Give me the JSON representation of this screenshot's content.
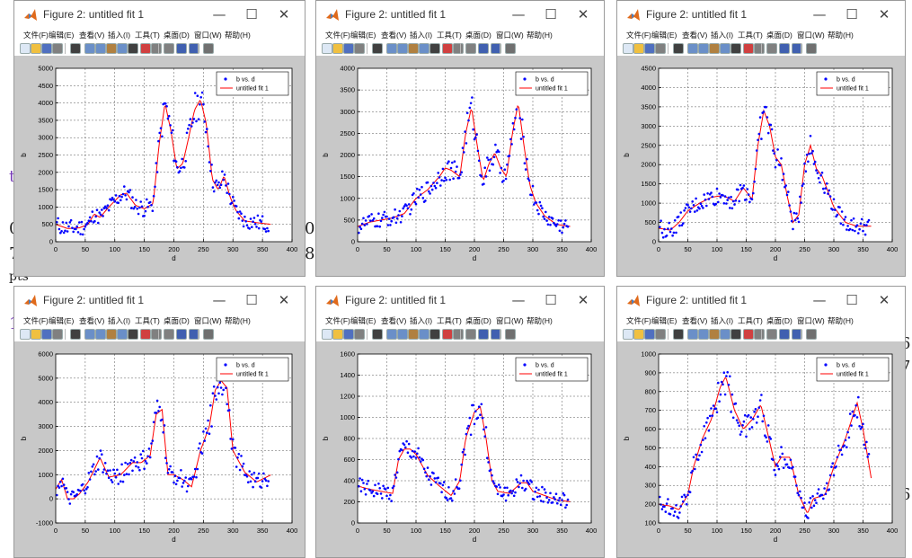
{
  "background_text": [
    "t",
    "0",
    "7",
    "0",
    "8",
    "pts",
    "1",
    "6",
    "7",
    "6"
  ],
  "window": {
    "title": "Figure 2: untitled fit 1",
    "controls": {
      "minimize": "—",
      "maximize": "☐",
      "close": "✕"
    },
    "menu": [
      "文件(F)",
      "编辑(E)",
      "查看(V)",
      "插入(I)",
      "工具(T)",
      "桌面(D)",
      "窗口(W)",
      "帮助(H)"
    ],
    "toolbar_icons": [
      "new-figure-icon",
      "open-file-icon",
      "save-icon",
      "print-icon",
      "pointer-icon",
      "zoom-in-icon",
      "zoom-out-icon",
      "pan-icon",
      "rotate-icon",
      "data-cursor-icon",
      "brush-icon",
      "link-plot-icon",
      "colorbar-icon",
      "legend-icon",
      "grid-icon",
      "plot-browser-icon"
    ]
  },
  "colors": {
    "data_points": "#0000ff",
    "fit_line": "#ff0000",
    "figure_bg": "#c8c8c8",
    "axes_bg": "#ffffff",
    "grid": "#555555"
  },
  "chart_data": [
    {
      "type": "scatter",
      "xlabel": "d",
      "ylabel": "b",
      "xlim": [
        0,
        400
      ],
      "ylim": [
        0,
        5000
      ],
      "xticks": [
        0,
        50,
        100,
        150,
        200,
        250,
        300,
        350,
        400
      ],
      "yticks": [
        0,
        500,
        1000,
        1500,
        2000,
        2500,
        3000,
        3500,
        4000,
        4500,
        5000
      ],
      "grid": true,
      "legend_position": "top-right",
      "legend": [
        "b vs. d",
        "untitled fit 1"
      ],
      "fit_x": [
        0,
        20,
        40,
        55,
        65,
        75,
        90,
        110,
        120,
        135,
        150,
        165,
        175,
        185,
        195,
        205,
        215,
        225,
        235,
        245,
        255,
        265,
        275,
        285,
        295,
        305,
        320,
        340,
        365
      ],
      "fit_y": [
        500,
        380,
        400,
        500,
        800,
        700,
        1000,
        1350,
        1400,
        1050,
        950,
        1100,
        2800,
        4000,
        3200,
        2100,
        2250,
        3000,
        3800,
        4100,
        3400,
        1800,
        1500,
        1900,
        1300,
        900,
        600,
        550,
        500
      ]
    },
    {
      "type": "scatter",
      "xlabel": "d",
      "ylabel": "b",
      "xlim": [
        0,
        400
      ],
      "ylim": [
        0,
        4000
      ],
      "xticks": [
        0,
        50,
        100,
        150,
        200,
        250,
        300,
        350,
        400
      ],
      "yticks": [
        0,
        500,
        1000,
        1500,
        2000,
        2500,
        3000,
        3500,
        4000
      ],
      "grid": true,
      "legend_position": "top-right",
      "legend": [
        "b vs. d",
        "untitled fit 1"
      ],
      "fit_x": [
        0,
        20,
        40,
        60,
        80,
        100,
        120,
        140,
        150,
        160,
        175,
        185,
        195,
        205,
        215,
        225,
        235,
        245,
        255,
        265,
        275,
        285,
        295,
        305,
        320,
        340,
        365
      ],
      "fit_y": [
        350,
        450,
        500,
        550,
        650,
        1000,
        1200,
        1500,
        1700,
        1650,
        1500,
        2500,
        3100,
        2200,
        1400,
        1800,
        2050,
        1700,
        1500,
        2500,
        3200,
        2200,
        1300,
        900,
        600,
        400,
        350
      ]
    },
    {
      "type": "scatter",
      "xlabel": "d",
      "ylabel": "b",
      "xlim": [
        0,
        400
      ],
      "ylim": [
        0,
        4500
      ],
      "xticks": [
        0,
        50,
        100,
        150,
        200,
        250,
        300,
        350,
        400
      ],
      "yticks": [
        0,
        500,
        1000,
        1500,
        2000,
        2500,
        3000,
        3500,
        4000,
        4500
      ],
      "grid": true,
      "legend_position": "top-right",
      "legend": [
        "b vs. d",
        "untitled fit 1"
      ],
      "fit_x": [
        0,
        20,
        35,
        50,
        70,
        90,
        110,
        130,
        145,
        160,
        170,
        180,
        190,
        200,
        210,
        220,
        230,
        240,
        250,
        260,
        270,
        280,
        290,
        300,
        320,
        340,
        365
      ],
      "fit_y": [
        350,
        300,
        500,
        800,
        1000,
        1150,
        1200,
        1050,
        1400,
        1100,
        2500,
        3400,
        3000,
        2200,
        2000,
        1200,
        500,
        700,
        2000,
        2500,
        1900,
        1700,
        1300,
        900,
        500,
        400,
        400
      ]
    },
    {
      "type": "scatter",
      "xlabel": "d",
      "ylabel": "b",
      "xlim": [
        0,
        400
      ],
      "ylim": [
        -1000,
        6000
      ],
      "xticks": [
        0,
        50,
        100,
        150,
        200,
        250,
        300,
        350,
        400
      ],
      "yticks": [
        -1000,
        0,
        1000,
        2000,
        3000,
        4000,
        5000,
        6000
      ],
      "grid": true,
      "legend_position": "top-right",
      "legend": [
        "b vs. d",
        "untitled fit 1"
      ],
      "fit_x": [
        0,
        10,
        20,
        30,
        40,
        55,
        65,
        75,
        90,
        110,
        130,
        145,
        160,
        170,
        180,
        190,
        200,
        215,
        230,
        245,
        260,
        270,
        280,
        290,
        300,
        320,
        340,
        365
      ],
      "fit_y": [
        400,
        800,
        0,
        0,
        200,
        700,
        1200,
        1700,
        900,
        1000,
        1500,
        1500,
        1800,
        3500,
        3700,
        1000,
        1000,
        800,
        500,
        2000,
        3000,
        4500,
        4900,
        4600,
        2000,
        1100,
        700,
        1000
      ]
    },
    {
      "type": "scatter",
      "xlabel": "d",
      "ylabel": "b",
      "xlim": [
        0,
        400
      ],
      "ylim": [
        0,
        1600
      ],
      "xticks": [
        0,
        50,
        100,
        150,
        200,
        250,
        300,
        350,
        400
      ],
      "yticks": [
        0,
        200,
        400,
        600,
        800,
        1000,
        1200,
        1400,
        1600
      ],
      "grid": true,
      "legend_position": "top-right",
      "legend": [
        "b vs. d",
        "untitled fit 1"
      ],
      "fit_x": [
        0,
        20,
        40,
        60,
        70,
        80,
        90,
        100,
        120,
        140,
        160,
        175,
        185,
        200,
        210,
        220,
        230,
        240,
        260,
        280,
        290,
        300,
        320,
        340,
        365
      ],
      "fit_y": [
        350,
        320,
        300,
        280,
        600,
        700,
        700,
        650,
        450,
        350,
        260,
        400,
        800,
        1050,
        1100,
        800,
        400,
        300,
        280,
        380,
        380,
        300,
        260,
        220,
        200
      ]
    },
    {
      "type": "scatter",
      "xlabel": "d",
      "ylabel": "b",
      "xlim": [
        0,
        400
      ],
      "ylim": [
        100,
        1000
      ],
      "xticks": [
        0,
        50,
        100,
        150,
        200,
        250,
        300,
        350,
        400
      ],
      "yticks": [
        100,
        200,
        300,
        400,
        500,
        600,
        700,
        800,
        900,
        1000
      ],
      "grid": true,
      "legend_position": "top-right",
      "legend": [
        "b vs. d",
        "untitled fit 1"
      ],
      "fit_x": [
        0,
        20,
        35,
        50,
        60,
        75,
        90,
        105,
        115,
        130,
        145,
        160,
        175,
        185,
        200,
        210,
        225,
        240,
        255,
        265,
        285,
        300,
        320,
        340,
        350,
        365
      ],
      "fit_y": [
        200,
        190,
        170,
        250,
        400,
        550,
        650,
        820,
        880,
        700,
        600,
        650,
        730,
        600,
        400,
        450,
        450,
        250,
        150,
        230,
        250,
        400,
        550,
        740,
        600,
        320
      ]
    }
  ]
}
